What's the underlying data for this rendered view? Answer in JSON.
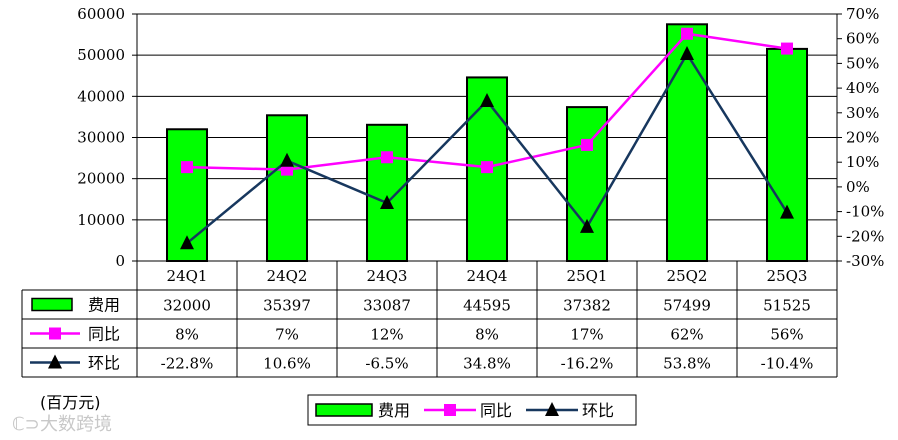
{
  "chart_data": {
    "type": "bar",
    "categories": [
      "24Q1",
      "24Q2",
      "24Q3",
      "24Q4",
      "25Q1",
      "25Q2",
      "25Q3"
    ],
    "series": [
      {
        "name": "费用",
        "kind": "bar",
        "axis": "left",
        "color": "#00ff00",
        "values": [
          32000,
          35397,
          33087,
          44595,
          37382,
          57499,
          51525
        ],
        "labels": [
          "32000",
          "35397",
          "33087",
          "44595",
          "37382",
          "57499",
          "51525"
        ]
      },
      {
        "name": "同比",
        "kind": "line",
        "axis": "right",
        "color": "#ff00ff",
        "marker": "square",
        "values": [
          8,
          7,
          12,
          8,
          17,
          62,
          56
        ],
        "labels": [
          "8%",
          "7%",
          "12%",
          "8%",
          "17%",
          "62%",
          "56%"
        ]
      },
      {
        "name": "环比",
        "kind": "line",
        "axis": "right",
        "color": "#17375e",
        "marker": "triangle",
        "values": [
          -22.8,
          10.6,
          -6.5,
          34.8,
          -16.2,
          53.8,
          -10.4
        ],
        "labels": [
          "-22.8%",
          "10.6%",
          "-6.5%",
          "34.8%",
          "-16.2%",
          "53.8%",
          "-10.4%"
        ]
      }
    ],
    "ylim": [
      0,
      60000
    ],
    "yticks": [
      "0",
      "10000",
      "20000",
      "30000",
      "40000",
      "50000",
      "60000"
    ],
    "y2lim": [
      -30,
      70
    ],
    "y2ticks": [
      "-30%",
      "-20%",
      "-10%",
      "0%",
      "10%",
      "20%",
      "30%",
      "40%",
      "50%",
      "60%",
      "70%"
    ],
    "unit_label": "(百万元)",
    "grid": true,
    "legend_position": "bottom"
  },
  "watermark": "大数跨境"
}
